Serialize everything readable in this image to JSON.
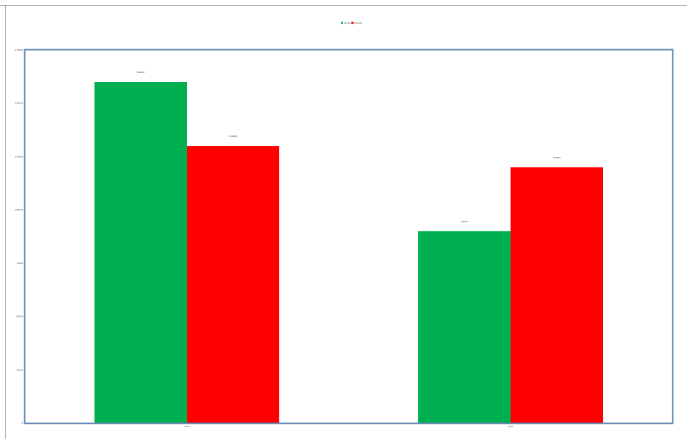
{
  "chart_data": {
    "type": "bar",
    "title": "",
    "xlabel": "",
    "ylabel": "",
    "categories": [
      "2019",
      "2020"
    ],
    "series": [
      {
        "name": "Series1",
        "color": "#00b050",
        "values": [
          160000,
          90000
        ]
      },
      {
        "name": "Series2",
        "color": "#ff0000",
        "values": [
          130000,
          120000
        ]
      }
    ],
    "ylim": [
      0,
      175000
    ],
    "yticks": [
      0,
      25000,
      50000,
      75000,
      100000,
      125000,
      150000,
      175000
    ],
    "grid": false,
    "legend": "top-center",
    "data_labels": true,
    "plot_border_color": "#5b7fae"
  }
}
